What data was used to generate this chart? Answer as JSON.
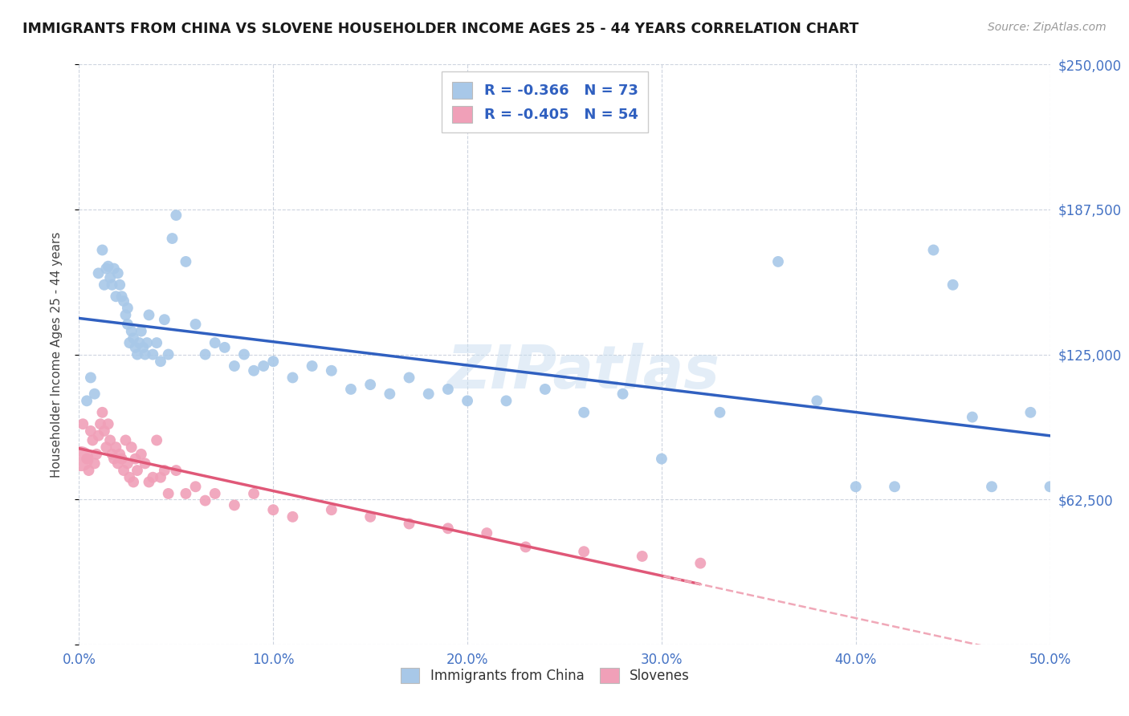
{
  "title": "IMMIGRANTS FROM CHINA VS SLOVENE HOUSEHOLDER INCOME AGES 25 - 44 YEARS CORRELATION CHART",
  "source": "Source: ZipAtlas.com",
  "ylabel": "Householder Income Ages 25 - 44 years",
  "x_min": 0.0,
  "x_max": 0.5,
  "y_min": 0,
  "y_max": 250000,
  "x_ticks": [
    0.0,
    0.1,
    0.2,
    0.3,
    0.4,
    0.5
  ],
  "x_tick_labels": [
    "0.0%",
    "10.0%",
    "20.0%",
    "30.0%",
    "40.0%",
    "50.0%"
  ],
  "y_ticks": [
    0,
    62500,
    125000,
    187500,
    250000
  ],
  "y_tick_labels_right": [
    "",
    "$62,500",
    "$125,000",
    "$187,500",
    "$250,000"
  ],
  "legend_china_R": "-0.366",
  "legend_china_N": "73",
  "legend_slovene_R": "-0.405",
  "legend_slovene_N": "54",
  "china_color": "#a8c8e8",
  "slovene_color": "#f0a0b8",
  "china_line_color": "#3060c0",
  "slovene_line_color": "#e05878",
  "slovene_dash_color": "#f0a8b8",
  "watermark": "ZIPatlas",
  "background_color": "#ffffff",
  "china_scatter_x": [
    0.004,
    0.006,
    0.008,
    0.01,
    0.012,
    0.013,
    0.014,
    0.015,
    0.016,
    0.017,
    0.018,
    0.019,
    0.02,
    0.021,
    0.022,
    0.023,
    0.024,
    0.025,
    0.025,
    0.026,
    0.027,
    0.028,
    0.029,
    0.03,
    0.031,
    0.032,
    0.033,
    0.034,
    0.035,
    0.036,
    0.038,
    0.04,
    0.042,
    0.044,
    0.046,
    0.048,
    0.05,
    0.055,
    0.06,
    0.065,
    0.07,
    0.075,
    0.08,
    0.085,
    0.09,
    0.095,
    0.1,
    0.11,
    0.12,
    0.13,
    0.14,
    0.15,
    0.16,
    0.17,
    0.18,
    0.19,
    0.2,
    0.22,
    0.24,
    0.26,
    0.28,
    0.3,
    0.33,
    0.36,
    0.38,
    0.4,
    0.42,
    0.44,
    0.45,
    0.46,
    0.47,
    0.49,
    0.5
  ],
  "china_scatter_y": [
    105000,
    115000,
    108000,
    160000,
    170000,
    155000,
    162000,
    163000,
    158000,
    155000,
    162000,
    150000,
    160000,
    155000,
    150000,
    148000,
    142000,
    145000,
    138000,
    130000,
    135000,
    132000,
    128000,
    125000,
    130000,
    135000,
    128000,
    125000,
    130000,
    142000,
    125000,
    130000,
    122000,
    140000,
    125000,
    175000,
    185000,
    165000,
    138000,
    125000,
    130000,
    128000,
    120000,
    125000,
    118000,
    120000,
    122000,
    115000,
    120000,
    118000,
    110000,
    112000,
    108000,
    115000,
    108000,
    110000,
    105000,
    105000,
    110000,
    100000,
    108000,
    80000,
    100000,
    165000,
    105000,
    68000,
    68000,
    170000,
    155000,
    98000,
    68000,
    100000,
    68000
  ],
  "slovene_scatter_x": [
    0.002,
    0.004,
    0.005,
    0.006,
    0.007,
    0.008,
    0.009,
    0.01,
    0.011,
    0.012,
    0.013,
    0.014,
    0.015,
    0.016,
    0.017,
    0.018,
    0.019,
    0.02,
    0.021,
    0.022,
    0.023,
    0.024,
    0.025,
    0.026,
    0.027,
    0.028,
    0.029,
    0.03,
    0.032,
    0.034,
    0.036,
    0.038,
    0.04,
    0.042,
    0.044,
    0.046,
    0.05,
    0.055,
    0.06,
    0.065,
    0.07,
    0.08,
    0.09,
    0.1,
    0.11,
    0.13,
    0.15,
    0.17,
    0.19,
    0.21,
    0.23,
    0.26,
    0.29,
    0.32
  ],
  "slovene_scatter_y": [
    95000,
    80000,
    75000,
    92000,
    88000,
    78000,
    82000,
    90000,
    95000,
    100000,
    92000,
    85000,
    95000,
    88000,
    82000,
    80000,
    85000,
    78000,
    82000,
    80000,
    75000,
    88000,
    78000,
    72000,
    85000,
    70000,
    80000,
    75000,
    82000,
    78000,
    70000,
    72000,
    88000,
    72000,
    75000,
    65000,
    75000,
    65000,
    68000,
    62000,
    65000,
    60000,
    65000,
    58000,
    55000,
    58000,
    55000,
    52000,
    50000,
    48000,
    42000,
    40000,
    38000,
    35000
  ]
}
